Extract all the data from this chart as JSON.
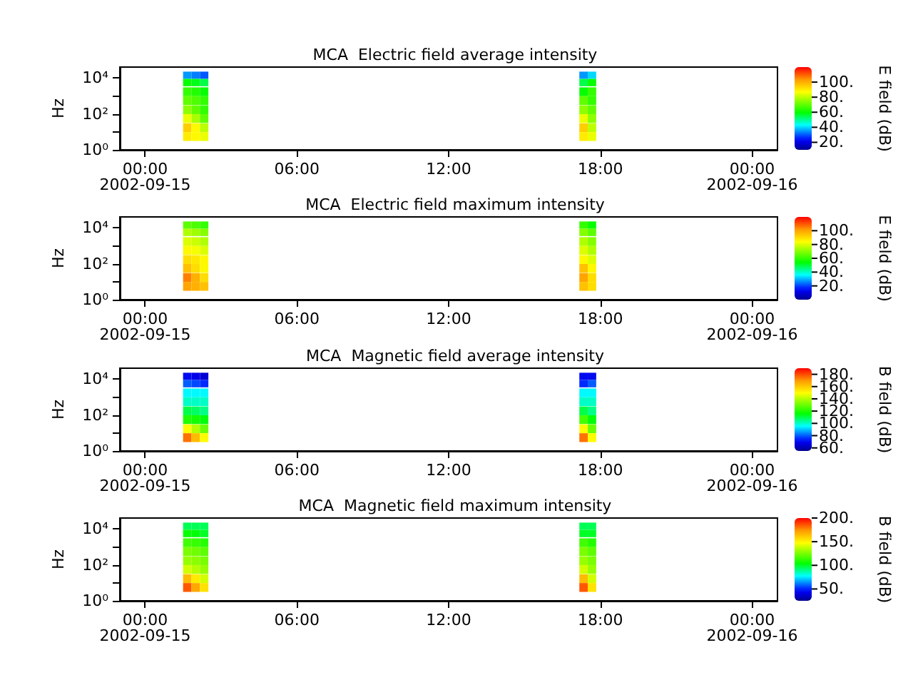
{
  "chart_data": [
    {
      "type": "heatmap",
      "title": "MCA  Electric field average intensity",
      "ylabel": "Hz",
      "clabel": "E field (dB)",
      "log": "y",
      "x": [
        "2002-09-15T01:40",
        "2002-09-15T02:00",
        "2002-09-15T02:20",
        "2002-09-15T02:40",
        "2002-09-15T03:00",
        "2002-09-15T03:20",
        "2002-09-15T03:40",
        "2002-09-15T04:00",
        "2002-09-15T04:20",
        "2002-09-15T04:40",
        "2002-09-15T05:00",
        "2002-09-15T05:20",
        "2002-09-15T05:40",
        "2002-09-15T06:00",
        "2002-09-15T06:20",
        "2002-09-15T06:40",
        "2002-09-15T07:00",
        "2002-09-15T07:20",
        "2002-09-15T07:40",
        "2002-09-15T08:00",
        "2002-09-15T08:20",
        "2002-09-15T08:40",
        "2002-09-15T09:00",
        "2002-09-15T09:20",
        "2002-09-15T09:40",
        "2002-09-15T10:00",
        "2002-09-15T10:20",
        "2002-09-15T10:40",
        "2002-09-15T11:00",
        "2002-09-15T11:20",
        "2002-09-15T11:40",
        "2002-09-15T12:00",
        "2002-09-15T12:20",
        "2002-09-15T12:40",
        "2002-09-15T13:00",
        "2002-09-15T13:20",
        "2002-09-15T13:40",
        "2002-09-15T14:00",
        "2002-09-15T14:20",
        "2002-09-15T14:40",
        "2002-09-15T15:00",
        "2002-09-15T15:20",
        "2002-09-15T15:40",
        "2002-09-15T16:00",
        "2002-09-15T16:20",
        "2002-09-15T16:40",
        "2002-09-15T17:00",
        "2002-09-15T17:20",
        "2002-09-15T17:40"
      ],
      "y": [
        14000,
        5500,
        1700,
        550,
        170,
        55,
        17,
        5.5
      ],
      "cells": [
        [
          35,
          33,
          30,
          null,
          null,
          null,
          null,
          null,
          null,
          null,
          null,
          null,
          null,
          null,
          null,
          null,
          null,
          null,
          null,
          null,
          null,
          null,
          null,
          null,
          null,
          null,
          null,
          null,
          null,
          null,
          null,
          null,
          null,
          null,
          null,
          null,
          null,
          null,
          null,
          null,
          null,
          null,
          null,
          null,
          null,
          null,
          null,
          35,
          40
        ],
        [
          60,
          58,
          55,
          null,
          null,
          null,
          null,
          null,
          null,
          null,
          null,
          null,
          null,
          null,
          null,
          null,
          null,
          null,
          null,
          null,
          null,
          null,
          null,
          null,
          null,
          null,
          null,
          null,
          null,
          null,
          null,
          null,
          null,
          null,
          null,
          null,
          null,
          null,
          null,
          null,
          null,
          null,
          null,
          null,
          null,
          null,
          null,
          55,
          60
        ],
        [
          65,
          63,
          60,
          null,
          null,
          null,
          null,
          null,
          null,
          null,
          null,
          null,
          null,
          null,
          null,
          null,
          null,
          null,
          null,
          null,
          null,
          null,
          null,
          null,
          null,
          null,
          null,
          null,
          null,
          null,
          null,
          null,
          null,
          null,
          null,
          null,
          null,
          null,
          null,
          null,
          null,
          null,
          null,
          null,
          null,
          null,
          null,
          60,
          65
        ],
        [
          70,
          68,
          65,
          null,
          null,
          null,
          null,
          null,
          null,
          null,
          null,
          null,
          null,
          null,
          null,
          null,
          null,
          null,
          null,
          null,
          null,
          null,
          null,
          null,
          null,
          null,
          null,
          null,
          null,
          null,
          null,
          null,
          null,
          null,
          null,
          null,
          null,
          null,
          null,
          null,
          null,
          null,
          null,
          null,
          null,
          null,
          null,
          70,
          65
        ],
        [
          75,
          70,
          65,
          null,
          null,
          null,
          null,
          null,
          null,
          null,
          null,
          null,
          null,
          null,
          null,
          null,
          null,
          null,
          null,
          null,
          null,
          null,
          null,
          null,
          null,
          null,
          null,
          null,
          null,
          null,
          null,
          null,
          null,
          null,
          null,
          null,
          null,
          null,
          null,
          null,
          null,
          null,
          null,
          null,
          null,
          null,
          null,
          75,
          70
        ],
        [
          85,
          78,
          70,
          null,
          null,
          null,
          null,
          null,
          null,
          null,
          null,
          null,
          null,
          null,
          null,
          null,
          null,
          null,
          null,
          null,
          null,
          null,
          null,
          null,
          null,
          null,
          null,
          null,
          null,
          null,
          null,
          null,
          null,
          null,
          null,
          null,
          null,
          null,
          null,
          null,
          null,
          null,
          null,
          null,
          null,
          null,
          null,
          85,
          75
        ],
        [
          95,
          88,
          80,
          null,
          null,
          null,
          null,
          null,
          null,
          null,
          null,
          null,
          null,
          null,
          null,
          null,
          null,
          null,
          null,
          null,
          null,
          null,
          null,
          null,
          null,
          null,
          null,
          null,
          null,
          null,
          null,
          null,
          null,
          null,
          null,
          null,
          null,
          null,
          null,
          null,
          null,
          null,
          null,
          null,
          null,
          null,
          null,
          95,
          80
        ],
        [
          90,
          88,
          85,
          null,
          null,
          null,
          null,
          null,
          null,
          null,
          null,
          null,
          null,
          null,
          null,
          null,
          null,
          null,
          null,
          null,
          null,
          null,
          null,
          null,
          null,
          null,
          null,
          null,
          null,
          null,
          null,
          null,
          null,
          null,
          null,
          null,
          null,
          null,
          null,
          null,
          null,
          null,
          null,
          null,
          null,
          null,
          null,
          90,
          85
        ]
      ],
      "xlim": [
        "2002-09-14T23:00",
        "2002-09-16T01:00"
      ],
      "xticks": [
        {
          "value": "2002-09-15T00:00",
          "label": "00:00\n2002-09-15"
        },
        {
          "value": "2002-09-15T06:00",
          "label": "06:00"
        },
        {
          "value": "2002-09-15T12:00",
          "label": "12:00"
        },
        {
          "value": "2002-09-15T18:00",
          "label": "18:00"
        },
        {
          "value": "2002-09-16T00:00",
          "label": "00:00\n2002-09-16"
        }
      ],
      "ylim": [
        1,
        40000
      ],
      "yticks": [
        {
          "value": 1,
          "label": "10⁰"
        },
        {
          "value": 10,
          "label": null
        },
        {
          "value": 100,
          "label": "10²"
        },
        {
          "value": 1000,
          "label": null
        },
        {
          "value": 10000,
          "label": "10⁴"
        }
      ],
      "clim": [
        10,
        120
      ],
      "cticks": [
        {
          "value": 20,
          "label": "20."
        },
        {
          "value": 40,
          "label": "40."
        },
        {
          "value": 60,
          "label": "60."
        },
        {
          "value": 80,
          "label": "80."
        },
        {
          "value": 100,
          "label": "100."
        }
      ]
    },
    {
      "type": "heatmap",
      "title": "MCA  Electric field maximum intensity",
      "ylabel": "Hz",
      "clabel": "E field (dB)",
      "log": "y",
      "x": [
        "2002-09-15T01:40",
        "2002-09-15T02:00",
        "2002-09-15T02:20",
        "2002-09-15T02:40",
        "2002-09-15T03:00",
        "2002-09-15T03:20",
        "2002-09-15T03:40",
        "2002-09-15T04:00",
        "2002-09-15T04:20",
        "2002-09-15T04:40",
        "2002-09-15T05:00",
        "2002-09-15T05:20",
        "2002-09-15T05:40",
        "2002-09-15T06:00",
        "2002-09-15T06:20",
        "2002-09-15T06:40",
        "2002-09-15T07:00",
        "2002-09-15T07:20",
        "2002-09-15T07:40",
        "2002-09-15T08:00",
        "2002-09-15T08:20",
        "2002-09-15T08:40",
        "2002-09-15T09:00",
        "2002-09-15T09:20",
        "2002-09-15T09:40",
        "2002-09-15T10:00",
        "2002-09-15T10:20",
        "2002-09-15T10:40",
        "2002-09-15T11:00",
        "2002-09-15T11:20",
        "2002-09-15T11:40",
        "2002-09-15T12:00",
        "2002-09-15T12:20",
        "2002-09-15T12:40",
        "2002-09-15T13:00",
        "2002-09-15T13:20",
        "2002-09-15T13:40",
        "2002-09-15T14:00",
        "2002-09-15T14:20",
        "2002-09-15T14:40",
        "2002-09-15T15:00",
        "2002-09-15T15:20",
        "2002-09-15T15:40",
        "2002-09-15T16:00",
        "2002-09-15T16:20",
        "2002-09-15T16:40",
        "2002-09-15T17:00",
        "2002-09-15T17:20",
        "2002-09-15T17:40"
      ],
      "y": [
        14000,
        5500,
        1700,
        550,
        170,
        55,
        17,
        5.5
      ],
      "cells": [
        [
          65,
          63,
          60,
          null,
          null,
          null,
          null,
          null,
          null,
          null,
          null,
          null,
          null,
          null,
          null,
          null,
          null,
          null,
          null,
          null,
          null,
          null,
          null,
          null,
          null,
          null,
          null,
          null,
          null,
          null,
          null,
          null,
          null,
          null,
          null,
          null,
          null,
          null,
          null,
          null,
          null,
          null,
          null,
          null,
          null,
          null,
          null,
          60,
          55
        ],
        [
          75,
          73,
          70,
          null,
          null,
          null,
          null,
          null,
          null,
          null,
          null,
          null,
          null,
          null,
          null,
          null,
          null,
          null,
          null,
          null,
          null,
          null,
          null,
          null,
          null,
          null,
          null,
          null,
          null,
          null,
          null,
          null,
          null,
          null,
          null,
          null,
          null,
          null,
          null,
          null,
          null,
          null,
          null,
          null,
          null,
          null,
          null,
          70,
          65
        ],
        [
          80,
          78,
          75,
          null,
          null,
          null,
          null,
          null,
          null,
          null,
          null,
          null,
          null,
          null,
          null,
          null,
          null,
          null,
          null,
          null,
          null,
          null,
          null,
          null,
          null,
          null,
          null,
          null,
          null,
          null,
          null,
          null,
          null,
          null,
          null,
          null,
          null,
          null,
          null,
          null,
          null,
          null,
          null,
          null,
          null,
          null,
          null,
          75,
          70
        ],
        [
          85,
          83,
          80,
          null,
          null,
          null,
          null,
          null,
          null,
          null,
          null,
          null,
          null,
          null,
          null,
          null,
          null,
          null,
          null,
          null,
          null,
          null,
          null,
          null,
          null,
          null,
          null,
          null,
          null,
          null,
          null,
          null,
          null,
          null,
          null,
          null,
          null,
          null,
          null,
          null,
          null,
          null,
          null,
          null,
          null,
          null,
          null,
          80,
          75
        ],
        [
          90,
          88,
          85,
          null,
          null,
          null,
          null,
          null,
          null,
          null,
          null,
          null,
          null,
          null,
          null,
          null,
          null,
          null,
          null,
          null,
          null,
          null,
          null,
          null,
          null,
          null,
          null,
          null,
          null,
          null,
          null,
          null,
          null,
          null,
          null,
          null,
          null,
          null,
          null,
          null,
          null,
          null,
          null,
          null,
          null,
          null,
          null,
          85,
          80
        ],
        [
          95,
          90,
          85,
          null,
          null,
          null,
          null,
          null,
          null,
          null,
          null,
          null,
          null,
          null,
          null,
          null,
          null,
          null,
          null,
          null,
          null,
          null,
          null,
          null,
          null,
          null,
          null,
          null,
          null,
          null,
          null,
          null,
          null,
          null,
          null,
          null,
          null,
          null,
          null,
          null,
          null,
          null,
          null,
          null,
          null,
          null,
          null,
          95,
          85
        ],
        [
          105,
          98,
          90,
          null,
          null,
          null,
          null,
          null,
          null,
          null,
          null,
          null,
          null,
          null,
          null,
          null,
          null,
          null,
          null,
          null,
          null,
          null,
          null,
          null,
          null,
          null,
          null,
          null,
          null,
          null,
          null,
          null,
          null,
          null,
          null,
          null,
          null,
          null,
          null,
          null,
          null,
          null,
          null,
          null,
          null,
          null,
          null,
          100,
          90
        ],
        [
          100,
          98,
          95,
          null,
          null,
          null,
          null,
          null,
          null,
          null,
          null,
          null,
          null,
          null,
          null,
          null,
          null,
          null,
          null,
          null,
          null,
          null,
          null,
          null,
          null,
          null,
          null,
          null,
          null,
          null,
          null,
          null,
          null,
          null,
          null,
          null,
          null,
          null,
          null,
          null,
          null,
          null,
          null,
          null,
          null,
          null,
          null,
          95,
          90
        ]
      ],
      "xlim": [
        "2002-09-14T23:00",
        "2002-09-16T01:00"
      ],
      "xticks": [
        {
          "value": "2002-09-15T00:00",
          "label": "00:00\n2002-09-15"
        },
        {
          "value": "2002-09-15T06:00",
          "label": "06:00"
        },
        {
          "value": "2002-09-15T12:00",
          "label": "12:00"
        },
        {
          "value": "2002-09-15T18:00",
          "label": "18:00"
        },
        {
          "value": "2002-09-16T00:00",
          "label": "00:00\n2002-09-16"
        }
      ],
      "ylim": [
        1,
        40000
      ],
      "yticks": [
        {
          "value": 1,
          "label": "10⁰"
        },
        {
          "value": 10,
          "label": null
        },
        {
          "value": 100,
          "label": "10²"
        },
        {
          "value": 1000,
          "label": null
        },
        {
          "value": 10000,
          "label": "10⁴"
        }
      ],
      "clim": [
        0,
        120
      ],
      "cticks": [
        {
          "value": 20,
          "label": "20."
        },
        {
          "value": 40,
          "label": "40."
        },
        {
          "value": 60,
          "label": "60."
        },
        {
          "value": 80,
          "label": "80."
        },
        {
          "value": 100,
          "label": "100."
        }
      ]
    },
    {
      "type": "heatmap",
      "title": "MCA  Magnetic field average intensity",
      "ylabel": "Hz",
      "clabel": "B field (dB)",
      "log": "y",
      "x": [
        "2002-09-15T01:40",
        "2002-09-15T02:00",
        "2002-09-15T02:20",
        "2002-09-15T02:40",
        "2002-09-15T03:00",
        "2002-09-15T03:20",
        "2002-09-15T03:40",
        "2002-09-15T04:00",
        "2002-09-15T04:20",
        "2002-09-15T04:40",
        "2002-09-15T05:00",
        "2002-09-15T05:20",
        "2002-09-15T05:40",
        "2002-09-15T06:00",
        "2002-09-15T06:20",
        "2002-09-15T06:40",
        "2002-09-15T07:00",
        "2002-09-15T07:20",
        "2002-09-15T07:40",
        "2002-09-15T08:00",
        "2002-09-15T08:20",
        "2002-09-15T08:40",
        "2002-09-15T09:00",
        "2002-09-15T09:20",
        "2002-09-15T09:40",
        "2002-09-15T10:00",
        "2002-09-15T10:20",
        "2002-09-15T10:40",
        "2002-09-15T11:00",
        "2002-09-15T11:20",
        "2002-09-15T11:40",
        "2002-09-15T12:00",
        "2002-09-15T12:20",
        "2002-09-15T12:40",
        "2002-09-15T13:00",
        "2002-09-15T13:20",
        "2002-09-15T13:40",
        "2002-09-15T14:00",
        "2002-09-15T14:20",
        "2002-09-15T14:40",
        "2002-09-15T15:00",
        "2002-09-15T15:20",
        "2002-09-15T15:40",
        "2002-09-15T16:00",
        "2002-09-15T16:20",
        "2002-09-15T16:40",
        "2002-09-15T17:00",
        "2002-09-15T17:20",
        "2002-09-15T17:40"
      ],
      "y": [
        14000,
        5500,
        1700,
        550,
        170,
        55,
        17,
        5.5
      ],
      "cells": [
        [
          70,
          68,
          65,
          null,
          null,
          null,
          null,
          null,
          null,
          null,
          null,
          null,
          null,
          null,
          null,
          null,
          null,
          null,
          null,
          null,
          null,
          null,
          null,
          null,
          null,
          null,
          null,
          null,
          null,
          null,
          null,
          null,
          null,
          null,
          null,
          null,
          null,
          null,
          null,
          null,
          null,
          null,
          null,
          null,
          null,
          null,
          null,
          70,
          70
        ],
        [
          80,
          78,
          75,
          null,
          null,
          null,
          null,
          null,
          null,
          null,
          null,
          null,
          null,
          null,
          null,
          null,
          null,
          null,
          null,
          null,
          null,
          null,
          null,
          null,
          null,
          null,
          null,
          null,
          null,
          null,
          null,
          null,
          null,
          null,
          null,
          null,
          null,
          null,
          null,
          null,
          null,
          null,
          null,
          null,
          null,
          null,
          null,
          75,
          80
        ],
        [
          95,
          95,
          95,
          null,
          null,
          null,
          null,
          null,
          null,
          null,
          null,
          null,
          null,
          null,
          null,
          null,
          null,
          null,
          null,
          null,
          null,
          null,
          null,
          null,
          null,
          null,
          null,
          null,
          null,
          null,
          null,
          null,
          null,
          null,
          null,
          null,
          null,
          null,
          null,
          null,
          null,
          null,
          null,
          null,
          null,
          null,
          null,
          95,
          95
        ],
        [
          100,
          100,
          100,
          null,
          null,
          null,
          null,
          null,
          null,
          null,
          null,
          null,
          null,
          null,
          null,
          null,
          null,
          null,
          null,
          null,
          null,
          null,
          null,
          null,
          null,
          null,
          null,
          null,
          null,
          null,
          null,
          null,
          null,
          null,
          null,
          null,
          null,
          null,
          null,
          null,
          null,
          null,
          null,
          null,
          null,
          null,
          null,
          100,
          100
        ],
        [
          110,
          108,
          105,
          null,
          null,
          null,
          null,
          null,
          null,
          null,
          null,
          null,
          null,
          null,
          null,
          null,
          null,
          null,
          null,
          null,
          null,
          null,
          null,
          null,
          null,
          null,
          null,
          null,
          null,
          null,
          null,
          null,
          null,
          null,
          null,
          null,
          null,
          null,
          null,
          null,
          null,
          null,
          null,
          null,
          null,
          null,
          null,
          110,
          105
        ],
        [
          120,
          118,
          115,
          null,
          null,
          null,
          null,
          null,
          null,
          null,
          null,
          null,
          null,
          null,
          null,
          null,
          null,
          null,
          null,
          null,
          null,
          null,
          null,
          null,
          null,
          null,
          null,
          null,
          null,
          null,
          null,
          null,
          null,
          null,
          null,
          null,
          null,
          null,
          null,
          null,
          null,
          null,
          null,
          null,
          null,
          null,
          null,
          125,
          115
        ],
        [
          150,
          140,
          130,
          null,
          null,
          null,
          null,
          null,
          null,
          null,
          null,
          null,
          null,
          null,
          null,
          null,
          null,
          null,
          null,
          null,
          null,
          null,
          null,
          null,
          null,
          null,
          null,
          null,
          null,
          null,
          null,
          null,
          null,
          null,
          null,
          null,
          null,
          null,
          null,
          null,
          null,
          null,
          null,
          null,
          null,
          null,
          null,
          150,
          130
        ],
        [
          175,
          163,
          150,
          null,
          null,
          null,
          null,
          null,
          null,
          null,
          null,
          null,
          null,
          null,
          null,
          null,
          null,
          null,
          null,
          null,
          null,
          null,
          null,
          null,
          null,
          null,
          null,
          null,
          null,
          null,
          null,
          null,
          null,
          null,
          null,
          null,
          null,
          null,
          null,
          null,
          null,
          null,
          null,
          null,
          null,
          null,
          null,
          175,
          150
        ]
      ],
      "xlim": [
        "2002-09-14T23:00",
        "2002-09-16T01:00"
      ],
      "xticks": [
        {
          "value": "2002-09-15T00:00",
          "label": "00:00\n2002-09-15"
        },
        {
          "value": "2002-09-15T06:00",
          "label": "06:00"
        },
        {
          "value": "2002-09-15T12:00",
          "label": "12:00"
        },
        {
          "value": "2002-09-15T18:00",
          "label": "18:00"
        },
        {
          "value": "2002-09-16T00:00",
          "label": "00:00\n2002-09-16"
        }
      ],
      "ylim": [
        1,
        40000
      ],
      "yticks": [
        {
          "value": 1,
          "label": "10⁰"
        },
        {
          "value": 10,
          "label": null
        },
        {
          "value": 100,
          "label": "10²"
        },
        {
          "value": 1000,
          "label": null
        },
        {
          "value": 10000,
          "label": "10⁴"
        }
      ],
      "clim": [
        55,
        190
      ],
      "cticks": [
        {
          "value": 60,
          "label": "60."
        },
        {
          "value": 80,
          "label": "80."
        },
        {
          "value": 100,
          "label": "100."
        },
        {
          "value": 120,
          "label": "120."
        },
        {
          "value": 140,
          "label": "140."
        },
        {
          "value": 160,
          "label": "160."
        },
        {
          "value": 180,
          "label": "180."
        }
      ]
    },
    {
      "type": "heatmap",
      "title": "MCA  Magnetic field maximum intensity",
      "ylabel": "Hz",
      "clabel": "B field (dB)",
      "log": "y",
      "x": [
        "2002-09-15T01:40",
        "2002-09-15T02:00",
        "2002-09-15T02:20",
        "2002-09-15T02:40",
        "2002-09-15T03:00",
        "2002-09-15T03:20",
        "2002-09-15T03:40",
        "2002-09-15T04:00",
        "2002-09-15T04:20",
        "2002-09-15T04:40",
        "2002-09-15T05:00",
        "2002-09-15T05:20",
        "2002-09-15T05:40",
        "2002-09-15T06:00",
        "2002-09-15T06:20",
        "2002-09-15T06:40",
        "2002-09-15T07:00",
        "2002-09-15T07:20",
        "2002-09-15T07:40",
        "2002-09-15T08:00",
        "2002-09-15T08:20",
        "2002-09-15T08:40",
        "2002-09-15T09:00",
        "2002-09-15T09:20",
        "2002-09-15T09:40",
        "2002-09-15T10:00",
        "2002-09-15T10:20",
        "2002-09-15T10:40",
        "2002-09-15T11:00",
        "2002-09-15T11:20",
        "2002-09-15T11:40",
        "2002-09-15T12:00",
        "2002-09-15T12:20",
        "2002-09-15T12:40",
        "2002-09-15T13:00",
        "2002-09-15T13:20",
        "2002-09-15T13:40",
        "2002-09-15T14:00",
        "2002-09-15T14:20",
        "2002-09-15T14:40",
        "2002-09-15T15:00",
        "2002-09-15T15:20",
        "2002-09-15T15:40",
        "2002-09-15T16:00",
        "2002-09-15T16:20",
        "2002-09-15T16:40",
        "2002-09-15T17:00",
        "2002-09-15T17:20",
        "2002-09-15T17:40"
      ],
      "y": [
        14000,
        5500,
        1700,
        550,
        170,
        55,
        17,
        5.5
      ],
      "cells": [
        [
          95,
          95,
          95,
          null,
          null,
          null,
          null,
          null,
          null,
          null,
          null,
          null,
          null,
          null,
          null,
          null,
          null,
          null,
          null,
          null,
          null,
          null,
          null,
          null,
          null,
          null,
          null,
          null,
          null,
          null,
          null,
          null,
          null,
          null,
          null,
          null,
          null,
          null,
          null,
          null,
          null,
          null,
          null,
          null,
          null,
          null,
          null,
          95,
          95
        ],
        [
          105,
          103,
          100,
          null,
          null,
          null,
          null,
          null,
          null,
          null,
          null,
          null,
          null,
          null,
          null,
          null,
          null,
          null,
          null,
          null,
          null,
          null,
          null,
          null,
          null,
          null,
          null,
          null,
          null,
          null,
          null,
          null,
          null,
          null,
          null,
          null,
          null,
          null,
          null,
          null,
          null,
          null,
          null,
          null,
          null,
          null,
          null,
          100,
          100
        ],
        [
          115,
          113,
          110,
          null,
          null,
          null,
          null,
          null,
          null,
          null,
          null,
          null,
          null,
          null,
          null,
          null,
          null,
          null,
          null,
          null,
          null,
          null,
          null,
          null,
          null,
          null,
          null,
          null,
          null,
          null,
          null,
          null,
          null,
          null,
          null,
          null,
          null,
          null,
          null,
          null,
          null,
          null,
          null,
          null,
          null,
          null,
          null,
          115,
          110
        ],
        [
          125,
          123,
          120,
          null,
          null,
          null,
          null,
          null,
          null,
          null,
          null,
          null,
          null,
          null,
          null,
          null,
          null,
          null,
          null,
          null,
          null,
          null,
          null,
          null,
          null,
          null,
          null,
          null,
          null,
          null,
          null,
          null,
          null,
          null,
          null,
          null,
          null,
          null,
          null,
          null,
          null,
          null,
          null,
          null,
          null,
          null,
          null,
          125,
          120
        ],
        [
          130,
          128,
          125,
          null,
          null,
          null,
          null,
          null,
          null,
          null,
          null,
          null,
          null,
          null,
          null,
          null,
          null,
          null,
          null,
          null,
          null,
          null,
          null,
          null,
          null,
          null,
          null,
          null,
          null,
          null,
          null,
          null,
          null,
          null,
          null,
          null,
          null,
          null,
          null,
          null,
          null,
          null,
          null,
          null,
          null,
          null,
          null,
          130,
          125
        ],
        [
          140,
          135,
          130,
          null,
          null,
          null,
          null,
          null,
          null,
          null,
          null,
          null,
          null,
          null,
          null,
          null,
          null,
          null,
          null,
          null,
          null,
          null,
          null,
          null,
          null,
          null,
          null,
          null,
          null,
          null,
          null,
          null,
          null,
          null,
          null,
          null,
          null,
          null,
          null,
          null,
          null,
          null,
          null,
          null,
          null,
          null,
          null,
          140,
          130
        ],
        [
          165,
          153,
          140,
          null,
          null,
          null,
          null,
          null,
          null,
          null,
          null,
          null,
          null,
          null,
          null,
          null,
          null,
          null,
          null,
          null,
          null,
          null,
          null,
          null,
          null,
          null,
          null,
          null,
          null,
          null,
          null,
          null,
          null,
          null,
          null,
          null,
          null,
          null,
          null,
          null,
          null,
          null,
          null,
          null,
          null,
          null,
          null,
          165,
          140
        ],
        [
          185,
          170,
          155,
          null,
          null,
          null,
          null,
          null,
          null,
          null,
          null,
          null,
          null,
          null,
          null,
          null,
          null,
          null,
          null,
          null,
          null,
          null,
          null,
          null,
          null,
          null,
          null,
          null,
          null,
          null,
          null,
          null,
          null,
          null,
          null,
          null,
          null,
          null,
          null,
          null,
          null,
          null,
          null,
          null,
          null,
          null,
          null,
          185,
          155
        ]
      ],
      "xlim": [
        "2002-09-14T23:00",
        "2002-09-16T01:00"
      ],
      "xticks": [
        {
          "value": "2002-09-15T00:00",
          "label": "00:00\n2002-09-15"
        },
        {
          "value": "2002-09-15T06:00",
          "label": "06:00"
        },
        {
          "value": "2002-09-15T12:00",
          "label": "12:00"
        },
        {
          "value": "2002-09-15T18:00",
          "label": "18:00"
        },
        {
          "value": "2002-09-16T00:00",
          "label": "00:00\n2002-09-16"
        }
      ],
      "ylim": [
        1,
        40000
      ],
      "yticks": [
        {
          "value": 1,
          "label": "10⁰"
        },
        {
          "value": 10,
          "label": null
        },
        {
          "value": 100,
          "label": "10²"
        },
        {
          "value": 1000,
          "label": null
        },
        {
          "value": 10000,
          "label": "10⁴"
        }
      ],
      "clim": [
        25,
        200
      ],
      "cticks": [
        {
          "value": 50,
          "label": "50."
        },
        {
          "value": 100,
          "label": "100."
        },
        {
          "value": 150,
          "label": "150."
        },
        {
          "value": 200,
          "label": "200."
        }
      ]
    }
  ]
}
